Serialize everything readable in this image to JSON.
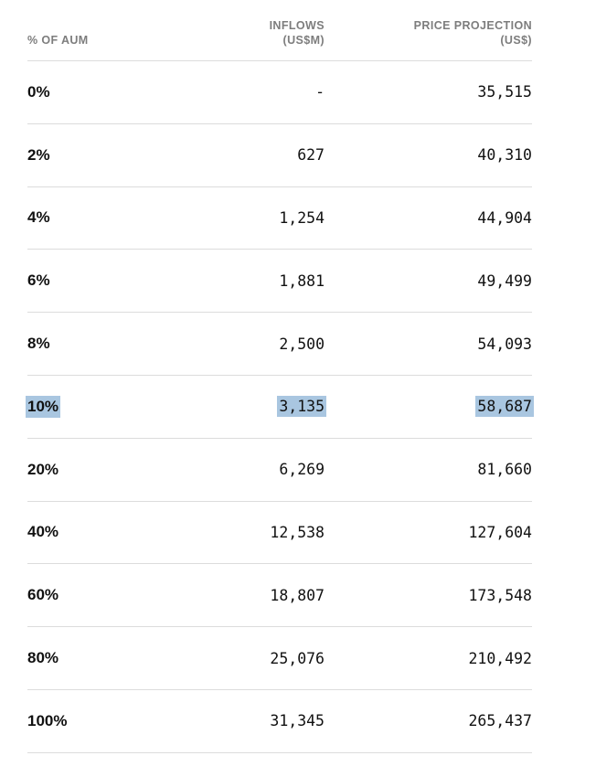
{
  "colors": {
    "highlight": "#a9c6e0",
    "header_text": "#7d7d7d",
    "body_text": "#111111",
    "divider": "#dcdcdc"
  },
  "table": {
    "columns": [
      {
        "line1": "% OF AUM",
        "line2": ""
      },
      {
        "line1": "INFLOWS",
        "line2": "(US$M)"
      },
      {
        "line1": "PRICE PROJECTION",
        "line2": "(US$)"
      }
    ],
    "rows": [
      {
        "aum": "0%",
        "inflows": "-",
        "price": "35,515"
      },
      {
        "aum": "2%",
        "inflows": "627",
        "price": "40,310"
      },
      {
        "aum": "4%",
        "inflows": "1,254",
        "price": "44,904"
      },
      {
        "aum": "6%",
        "inflows": "1,881",
        "price": "49,499"
      },
      {
        "aum": "8%",
        "inflows": "2,500",
        "price": "54,093"
      },
      {
        "aum": "10%",
        "inflows": "3,135",
        "price": "58,687"
      },
      {
        "aum": "20%",
        "inflows": "6,269",
        "price": "81,660"
      },
      {
        "aum": "40%",
        "inflows": "12,538",
        "price": "127,604"
      },
      {
        "aum": "60%",
        "inflows": "18,807",
        "price": "173,548"
      },
      {
        "aum": "80%",
        "inflows": "25,076",
        "price": "210,492"
      },
      {
        "aum": "100%",
        "inflows": "31,345",
        "price": "265,437"
      }
    ],
    "highlighted_row_index": 5
  },
  "chart_data": {
    "type": "table",
    "title": "",
    "columns": [
      "% OF AUM",
      "INFLOWS (US$M)",
      "PRICE PROJECTION (US$)"
    ],
    "rows": [
      [
        "0%",
        null,
        35515
      ],
      [
        "2%",
        627,
        40310
      ],
      [
        "4%",
        1254,
        44904
      ],
      [
        "6%",
        1881,
        49499
      ],
      [
        "8%",
        2500,
        54093
      ],
      [
        "10%",
        3135,
        58687
      ],
      [
        "20%",
        6269,
        81660
      ],
      [
        "40%",
        12538,
        127604
      ],
      [
        "60%",
        18807,
        173548
      ],
      [
        "80%",
        25076,
        210492
      ],
      [
        "100%",
        31345,
        265437
      ]
    ],
    "highlighted_row": "10%",
    "layout": {
      "grid": "horizontal-dividers",
      "value_alignment": "right"
    }
  }
}
